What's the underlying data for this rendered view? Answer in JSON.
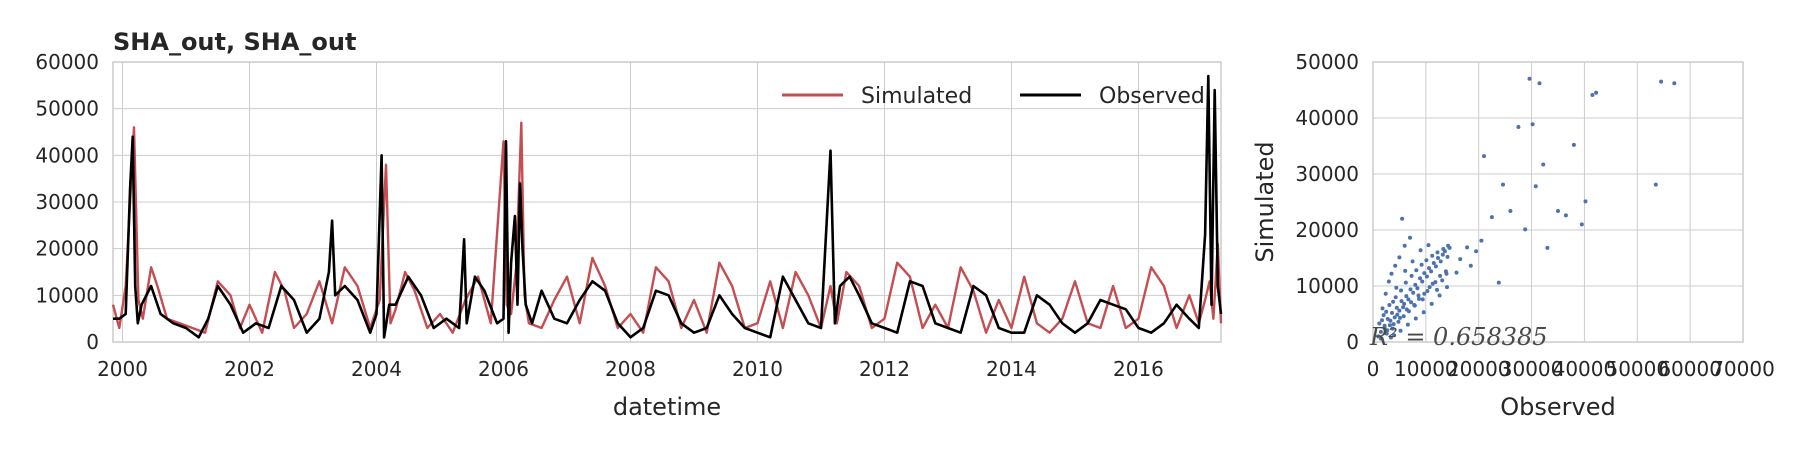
{
  "chart_data": [
    {
      "type": "line",
      "title": "SHA_out, SHA_out",
      "xlabel": "datetime",
      "ylabel": "",
      "xlim": [
        1999.85,
        2017.3
      ],
      "ylim": [
        0,
        60000
      ],
      "xticks": [
        2000,
        2002,
        2004,
        2006,
        2008,
        2010,
        2012,
        2014,
        2016
      ],
      "yticks": [
        0,
        10000,
        20000,
        30000,
        40000,
        50000,
        60000
      ],
      "grid": true,
      "legend": "top-right",
      "series": [
        {
          "name": "Simulated",
          "color": "#c44e52",
          "x": [
            1999.85,
            1999.95,
            2000.05,
            2000.12,
            2000.18,
            2000.25,
            2000.32,
            2000.45,
            2000.55,
            2000.7,
            2000.9,
            2001.1,
            2001.3,
            2001.5,
            2001.7,
            2001.85,
            2002.0,
            2002.2,
            2002.4,
            2002.55,
            2002.7,
            2002.9,
            2003.1,
            2003.3,
            2003.5,
            2003.7,
            2003.9,
            2004.05,
            2004.15,
            2004.22,
            2004.3,
            2004.45,
            2004.6,
            2004.8,
            2005.0,
            2005.2,
            2005.4,
            2005.6,
            2005.8,
            2006.0,
            2006.05,
            2006.12,
            2006.2,
            2006.28,
            2006.33,
            2006.4,
            2006.6,
            2006.8,
            2007.0,
            2007.2,
            2007.4,
            2007.6,
            2007.8,
            2008.0,
            2008.2,
            2008.4,
            2008.6,
            2008.8,
            2009.0,
            2009.2,
            2009.4,
            2009.6,
            2009.8,
            2010.0,
            2010.2,
            2010.4,
            2010.6,
            2010.8,
            2011.0,
            2011.15,
            2011.25,
            2011.4,
            2011.6,
            2011.8,
            2012.0,
            2012.2,
            2012.4,
            2012.6,
            2012.8,
            2013.0,
            2013.2,
            2013.4,
            2013.6,
            2013.8,
            2014.0,
            2014.2,
            2014.4,
            2014.6,
            2014.8,
            2015.0,
            2015.2,
            2015.4,
            2015.6,
            2015.8,
            2016.0,
            2016.2,
            2016.4,
            2016.6,
            2016.8,
            2016.95,
            2017.05,
            2017.12,
            2017.18,
            2017.25,
            2017.3
          ],
          "y": [
            8000,
            3000,
            12000,
            30000,
            46000,
            9000,
            5000,
            16000,
            12000,
            5000,
            4000,
            3000,
            2000,
            13000,
            10000,
            3000,
            8000,
            2000,
            15000,
            11000,
            3000,
            6000,
            13000,
            4000,
            16000,
            12000,
            3000,
            9000,
            38000,
            4000,
            7000,
            15000,
            11000,
            3000,
            6000,
            2000,
            9000,
            14000,
            4000,
            43000,
            8000,
            6000,
            16000,
            47000,
            10000,
            4000,
            3000,
            9000,
            14000,
            4000,
            18000,
            12000,
            3000,
            6000,
            2000,
            16000,
            13000,
            3000,
            9000,
            2000,
            17000,
            12000,
            3000,
            4000,
            13000,
            3000,
            15000,
            10000,
            3000,
            12000,
            4000,
            15000,
            12000,
            3000,
            5000,
            17000,
            14000,
            3000,
            8000,
            3000,
            16000,
            11000,
            2000,
            9000,
            3000,
            14000,
            4000,
            2000,
            5000,
            13000,
            4000,
            3000,
            12000,
            3000,
            5000,
            16000,
            12000,
            3000,
            10000,
            4000,
            9000,
            13000,
            5000,
            21000,
            4000
          ]
        },
        {
          "name": "Observed",
          "color": "#000000",
          "x": [
            1999.85,
            1999.95,
            2000.05,
            2000.12,
            2000.16,
            2000.2,
            2000.24,
            2000.3,
            2000.45,
            2000.6,
            2000.8,
            2001.0,
            2001.2,
            2001.35,
            2001.5,
            2001.7,
            2001.9,
            2002.1,
            2002.3,
            2002.5,
            2002.7,
            2002.9,
            2003.1,
            2003.25,
            2003.3,
            2003.35,
            2003.5,
            2003.7,
            2003.9,
            2004.0,
            2004.08,
            2004.12,
            2004.2,
            2004.3,
            2004.5,
            2004.7,
            2004.9,
            2005.1,
            2005.3,
            2005.38,
            2005.42,
            2005.55,
            2005.7,
            2005.9,
            2006.0,
            2006.04,
            2006.08,
            2006.12,
            2006.18,
            2006.22,
            2006.26,
            2006.3,
            2006.35,
            2006.45,
            2006.6,
            2006.8,
            2007.0,
            2007.2,
            2007.4,
            2007.6,
            2007.8,
            2008.0,
            2008.2,
            2008.4,
            2008.6,
            2008.8,
            2009.0,
            2009.2,
            2009.4,
            2009.6,
            2009.8,
            2010.0,
            2010.2,
            2010.4,
            2010.6,
            2010.8,
            2011.0,
            2011.15,
            2011.22,
            2011.3,
            2011.45,
            2011.6,
            2011.8,
            2012.0,
            2012.2,
            2012.4,
            2012.6,
            2012.8,
            2013.0,
            2013.2,
            2013.4,
            2013.6,
            2013.8,
            2014.0,
            2014.2,
            2014.4,
            2014.6,
            2014.8,
            2015.0,
            2015.2,
            2015.4,
            2015.6,
            2015.8,
            2016.0,
            2016.2,
            2016.4,
            2016.6,
            2016.8,
            2016.95,
            2017.05,
            2017.1,
            2017.15,
            2017.2,
            2017.25,
            2017.3
          ],
          "y": [
            5000,
            5000,
            6000,
            33000,
            44000,
            12000,
            4000,
            8000,
            12000,
            6000,
            4000,
            3000,
            1000,
            5000,
            12000,
            8000,
            2000,
            4000,
            3000,
            12000,
            9000,
            2000,
            5000,
            15000,
            26000,
            10000,
            12000,
            9000,
            2000,
            6000,
            40000,
            1000,
            8000,
            8000,
            14000,
            10000,
            3000,
            5000,
            3000,
            22000,
            4000,
            14000,
            11000,
            4000,
            5000,
            43000,
            2000,
            17000,
            27000,
            8000,
            34000,
            20000,
            8000,
            4000,
            11000,
            5000,
            4000,
            9000,
            13000,
            11000,
            4000,
            1000,
            3000,
            11000,
            10000,
            4000,
            2000,
            3000,
            10000,
            6000,
            3000,
            2000,
            1000,
            14000,
            9000,
            4000,
            3000,
            41000,
            4000,
            12000,
            14000,
            10000,
            4000,
            3000,
            2000,
            13000,
            12000,
            4000,
            3000,
            2000,
            12000,
            10000,
            3000,
            2000,
            2000,
            10000,
            8000,
            4000,
            2000,
            4000,
            9000,
            8000,
            7000,
            3000,
            2000,
            4000,
            8000,
            5000,
            3000,
            23000,
            57000,
            8000,
            54000,
            12000,
            6000
          ]
        }
      ]
    },
    {
      "type": "scatter",
      "title": "",
      "xlabel": "Observed",
      "ylabel": "Simulated",
      "xlim": [
        0,
        70000
      ],
      "ylim": [
        0,
        50000
      ],
      "xticks": [
        0,
        10000,
        20000,
        30000,
        40000,
        50000,
        60000,
        70000
      ],
      "yticks": [
        0,
        10000,
        20000,
        30000,
        40000,
        50000
      ],
      "grid": true,
      "color": "#4c72b0",
      "annotation": "R² = 0.658385",
      "points": [
        [
          1500,
          1800
        ],
        [
          2200,
          2500
        ],
        [
          2800,
          4100
        ],
        [
          3200,
          3000
        ],
        [
          3600,
          5200
        ],
        [
          4100,
          4400
        ],
        [
          4500,
          6100
        ],
        [
          5000,
          5600
        ],
        [
          5400,
          7300
        ],
        [
          5900,
          6800
        ],
        [
          6300,
          8200
        ],
        [
          6700,
          7600
        ],
        [
          7100,
          9400
        ],
        [
          7600,
          8800
        ],
        [
          8000,
          10200
        ],
        [
          8400,
          9600
        ],
        [
          8900,
          11400
        ],
        [
          9300,
          10800
        ],
        [
          9700,
          12300
        ],
        [
          10200,
          11700
        ],
        [
          10600,
          13200
        ],
        [
          11000,
          12600
        ],
        [
          11500,
          14100
        ],
        [
          11900,
          13500
        ],
        [
          12300,
          15000
        ],
        [
          12800,
          14400
        ],
        [
          13200,
          15600
        ],
        [
          13600,
          16200
        ],
        [
          14100,
          15200
        ],
        [
          14500,
          16800
        ],
        [
          2000,
          4800
        ],
        [
          2600,
          1500
        ],
        [
          3100,
          6600
        ],
        [
          3700,
          2400
        ],
        [
          4300,
          8000
        ],
        [
          4800,
          3600
        ],
        [
          5300,
          9200
        ],
        [
          5800,
          4600
        ],
        [
          6200,
          10600
        ],
        [
          6800,
          5500
        ],
        [
          7300,
          11800
        ],
        [
          7800,
          6600
        ],
        [
          8200,
          12800
        ],
        [
          8700,
          7700
        ],
        [
          9200,
          13800
        ],
        [
          9700,
          8600
        ],
        [
          10100,
          14600
        ],
        [
          10700,
          9800
        ],
        [
          11200,
          15400
        ],
        [
          11800,
          10700
        ],
        [
          12200,
          16000
        ],
        [
          12700,
          11800
        ],
        [
          13300,
          16600
        ],
        [
          13800,
          12600
        ],
        [
          14200,
          17200
        ],
        [
          3400,
          800
        ],
        [
          4000,
          1200
        ],
        [
          5200,
          2000
        ],
        [
          6600,
          3100
        ],
        [
          8100,
          4200
        ],
        [
          9600,
          5300
        ],
        [
          11100,
          6800
        ],
        [
          12600,
          8300
        ],
        [
          14000,
          9800
        ],
        [
          1200,
          3300
        ],
        [
          1800,
          6000
        ],
        [
          2400,
          8600
        ],
        [
          3000,
          10800
        ],
        [
          3500,
          12200
        ],
        [
          4200,
          13600
        ],
        [
          5000,
          15100
        ],
        [
          6000,
          17200
        ],
        [
          7000,
          18600
        ],
        [
          5500,
          22000
        ],
        [
          15800,
          12400
        ],
        [
          16500,
          14800
        ],
        [
          17800,
          16900
        ],
        [
          18500,
          13600
        ],
        [
          19500,
          16200
        ],
        [
          20500,
          18100
        ],
        [
          21000,
          33200
        ],
        [
          22500,
          22300
        ],
        [
          23800,
          10600
        ],
        [
          24600,
          28100
        ],
        [
          26000,
          23400
        ],
        [
          27500,
          38400
        ],
        [
          28800,
          20100
        ],
        [
          29600,
          47000
        ],
        [
          30200,
          38900
        ],
        [
          30800,
          27800
        ],
        [
          31500,
          46200
        ],
        [
          32200,
          31700
        ],
        [
          33000,
          16800
        ],
        [
          35000,
          23400
        ],
        [
          36500,
          22600
        ],
        [
          38000,
          35200
        ],
        [
          39500,
          21000
        ],
        [
          40200,
          25100
        ],
        [
          41500,
          44100
        ],
        [
          42200,
          44500
        ],
        [
          53500,
          28100
        ],
        [
          54500,
          46500
        ],
        [
          57000,
          46200
        ],
        [
          1000,
          1000
        ],
        [
          1500,
          600
        ],
        [
          2200,
          2900
        ],
        [
          2700,
          2100
        ],
        [
          3300,
          3800
        ],
        [
          3900,
          3200
        ],
        [
          4600,
          4900
        ],
        [
          5100,
          4300
        ],
        [
          5700,
          6200
        ],
        [
          6400,
          5800
        ],
        [
          7200,
          7100
        ],
        [
          7900,
          6500
        ],
        [
          8600,
          8300
        ],
        [
          9400,
          7600
        ],
        [
          10300,
          9100
        ],
        [
          11300,
          10400
        ],
        [
          12100,
          9300
        ],
        [
          13100,
          11000
        ],
        [
          13900,
          12200
        ],
        [
          1700,
          3900
        ],
        [
          2500,
          5400
        ],
        [
          3800,
          7200
        ],
        [
          4400,
          9700
        ],
        [
          6100,
          12700
        ],
        [
          7500,
          14400
        ],
        [
          9000,
          16400
        ],
        [
          10500,
          17300
        ]
      ]
    }
  ]
}
